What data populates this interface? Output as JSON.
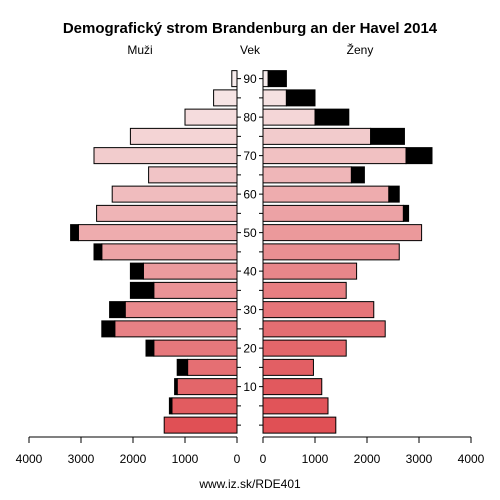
{
  "chart_data": {
    "type": "bar",
    "title": "Demografický strom Brandenburg an der Havel 2014",
    "left_label": "Muži",
    "center_label": "Vek",
    "right_label": "Ženy",
    "footer": "www.iz.sk/RDE401",
    "x_axis": {
      "ticks_left": [
        "4000",
        "3000",
        "2000",
        "1000",
        "0"
      ],
      "ticks_right": [
        "0",
        "1000",
        "2000",
        "3000",
        "4000"
      ],
      "range": [
        0,
        4000
      ]
    },
    "age_ticks": [
      "10",
      "20",
      "30",
      "40",
      "50",
      "60",
      "70",
      "80",
      "90"
    ],
    "age_tick_values": [
      10,
      20,
      30,
      40,
      50,
      60,
      70,
      80,
      90
    ],
    "age_groups": [
      0,
      5,
      10,
      15,
      20,
      25,
      30,
      35,
      40,
      45,
      50,
      55,
      60,
      65,
      70,
      75,
      80,
      85,
      90
    ],
    "male_base": [
      1400,
      1250,
      1150,
      950,
      1600,
      2350,
      2150,
      1600,
      1800,
      2600,
      3050,
      2700,
      2400,
      1700,
      2750,
      2050,
      1000,
      450,
      100
    ],
    "male_excess": [
      0,
      50,
      50,
      200,
      150,
      250,
      300,
      450,
      250,
      150,
      150,
      0,
      0,
      0,
      0,
      0,
      0,
      0,
      0
    ],
    "female_base": [
      1400,
      1250,
      1130,
      970,
      1600,
      2350,
      2130,
      1600,
      1800,
      2620,
      3050,
      2700,
      2420,
      1700,
      2750,
      2070,
      1000,
      450,
      100
    ],
    "female_excess": [
      0,
      0,
      0,
      0,
      0,
      0,
      0,
      0,
      0,
      0,
      0,
      100,
      200,
      250,
      500,
      650,
      650,
      550,
      350
    ],
    "colors": {
      "young": "#e05055",
      "old": "#f7ecec",
      "excess": "#000000",
      "stroke": "#000000"
    }
  }
}
